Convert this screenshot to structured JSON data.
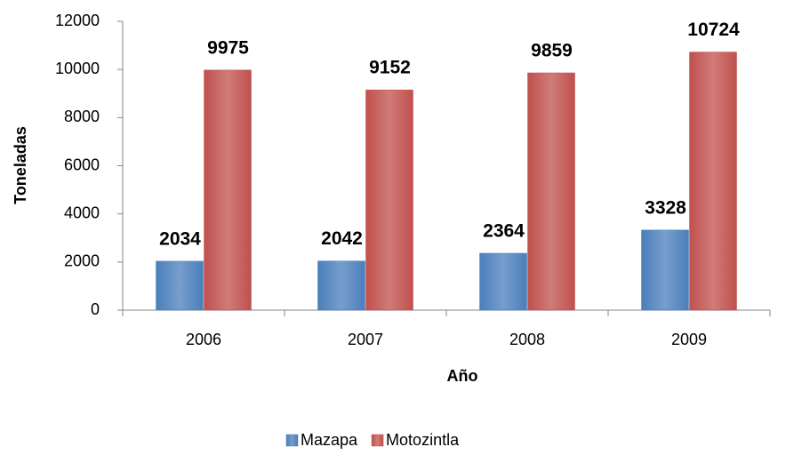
{
  "chart_data": {
    "type": "bar",
    "y_label": "Toneladas",
    "x_label": "Año",
    "categories": [
      "2006",
      "2007",
      "2008",
      "2009"
    ],
    "series": [
      {
        "name": "Mazapa",
        "color": "#4a7ebb",
        "values": [
          2034,
          2042,
          2364,
          3328
        ]
      },
      {
        "name": "Motozintla",
        "color": "#c0504d",
        "values": [
          9975,
          9152,
          9859,
          10724
        ]
      }
    ],
    "ylim": [
      0,
      12000
    ],
    "yticks": [
      0,
      2000,
      4000,
      6000,
      8000,
      10000,
      12000
    ]
  }
}
